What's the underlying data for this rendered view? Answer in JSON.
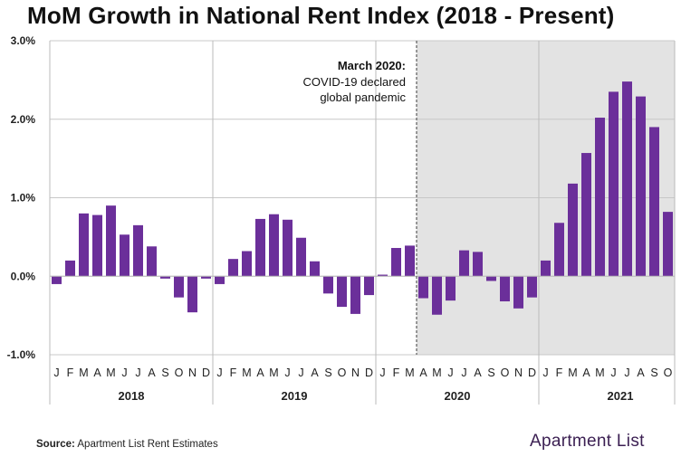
{
  "chart_data": {
    "type": "bar",
    "title": "MoM Growth in National Rent Index (2018 - Present)",
    "ylim": [
      -1.0,
      3.0
    ],
    "yticks": [
      "3.0%",
      "2.0%",
      "1.0%",
      "0.0%",
      "-1.0%"
    ],
    "ytick_values": [
      3.0,
      2.0,
      1.0,
      0.0,
      -1.0
    ],
    "grid": true,
    "bar_color": "#6b2f9a",
    "shade_color": "#e3e3e3",
    "years": [
      {
        "label": "2018",
        "months": [
          "J",
          "F",
          "M",
          "A",
          "M",
          "J",
          "J",
          "A",
          "S",
          "O",
          "N",
          "D"
        ],
        "values": [
          -0.1,
          0.2,
          0.8,
          0.78,
          0.9,
          0.53,
          0.65,
          0.38,
          -0.03,
          -0.27,
          -0.46,
          -0.03
        ]
      },
      {
        "label": "2019",
        "months": [
          "J",
          "F",
          "M",
          "A",
          "M",
          "J",
          "J",
          "A",
          "S",
          "O",
          "N",
          "D"
        ],
        "values": [
          -0.1,
          0.22,
          0.32,
          0.73,
          0.79,
          0.72,
          0.49,
          0.19,
          -0.22,
          -0.39,
          -0.48,
          -0.24
        ]
      },
      {
        "label": "2020",
        "months": [
          "J",
          "F",
          "M",
          "A",
          "M",
          "J",
          "J",
          "A",
          "S",
          "O",
          "N",
          "D"
        ],
        "values": [
          0.02,
          0.36,
          0.39,
          -0.28,
          -0.49,
          -0.31,
          0.33,
          0.31,
          -0.06,
          -0.32,
          -0.41,
          -0.27
        ]
      },
      {
        "label": "2021",
        "months": [
          "J",
          "F",
          "M",
          "A",
          "M",
          "J",
          "J",
          "A",
          "S",
          "O"
        ],
        "values": [
          0.2,
          0.68,
          1.18,
          1.57,
          2.02,
          2.35,
          2.48,
          2.29,
          1.9,
          0.82
        ]
      }
    ],
    "annotation": {
      "title": "March 2020:",
      "lines": [
        "COVID-19 declared",
        "global pandemic"
      ]
    }
  },
  "footer": {
    "source_label": "Source:",
    "source_text": " Apartment List Rent Estimates"
  },
  "logo": {
    "text": "Apartment List"
  }
}
